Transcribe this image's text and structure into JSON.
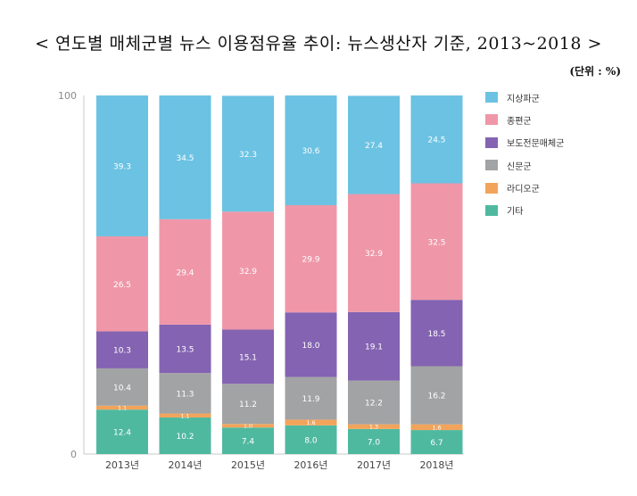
{
  "title": "< 연도별 매체군별 뉴스 이용점유율 추이: 뉴스생산자 기준, 2013~2018 >",
  "unit_label": "(단위 : %)",
  "chart_data": {
    "type": "bar",
    "stacked": true,
    "categories": [
      "2013년",
      "2014년",
      "2015년",
      "2016년",
      "2017년",
      "2018년"
    ],
    "series": [
      {
        "name": "기타",
        "color": "#4fb9a0",
        "values": [
          12.4,
          10.2,
          7.4,
          8.0,
          7.0,
          6.7
        ]
      },
      {
        "name": "라디오군",
        "color": "#f2a45b",
        "values": [
          1.1,
          1.1,
          1.0,
          1.6,
          1.3,
          1.6
        ]
      },
      {
        "name": "신문군",
        "color": "#a2a3a5",
        "values": [
          10.4,
          11.3,
          11.2,
          11.9,
          12.2,
          16.2
        ]
      },
      {
        "name": "보도전문매체군",
        "color": "#8463b2",
        "values": [
          10.3,
          13.5,
          15.1,
          18.0,
          19.1,
          18.5
        ]
      },
      {
        "name": "종편군",
        "color": "#ef97a8",
        "values": [
          26.5,
          29.4,
          32.9,
          29.9,
          32.9,
          32.5
        ]
      },
      {
        "name": "지상파군",
        "color": "#6cc2e2",
        "values": [
          39.3,
          34.5,
          32.3,
          30.6,
          27.4,
          24.5
        ]
      }
    ],
    "labels": [
      [
        "12.4",
        "10.2",
        "7.4",
        "8.0",
        "7.0",
        "6.7"
      ],
      [
        "1.1",
        "1.1",
        "1.0",
        "1.6",
        "1.3",
        "1.6"
      ],
      [
        "10.4",
        "11.3",
        "11.2",
        "11.9",
        "12.2",
        "16.2"
      ],
      [
        "10.3",
        "13.5",
        "15.1",
        "18.0",
        "19.1",
        "18.5"
      ],
      [
        "26.5",
        "29.4",
        "32.9",
        "29.9",
        "32.9",
        "32.5"
      ],
      [
        "39.3",
        "34.5",
        "32.3",
        "30.6",
        "27.4",
        "24.5"
      ]
    ],
    "legend": [
      "지상파군",
      "종편군",
      "보도전문매체군",
      "신문군",
      "라디오군",
      "기타"
    ],
    "legend_colors": [
      "#6cc2e2",
      "#ef97a8",
      "#8463b2",
      "#a2a3a5",
      "#f2a45b",
      "#4fb9a0"
    ],
    "legend_position": "right",
    "ylim": [
      0,
      100
    ],
    "yticks": [
      "0",
      "100"
    ],
    "xlabel": "",
    "ylabel": ""
  }
}
